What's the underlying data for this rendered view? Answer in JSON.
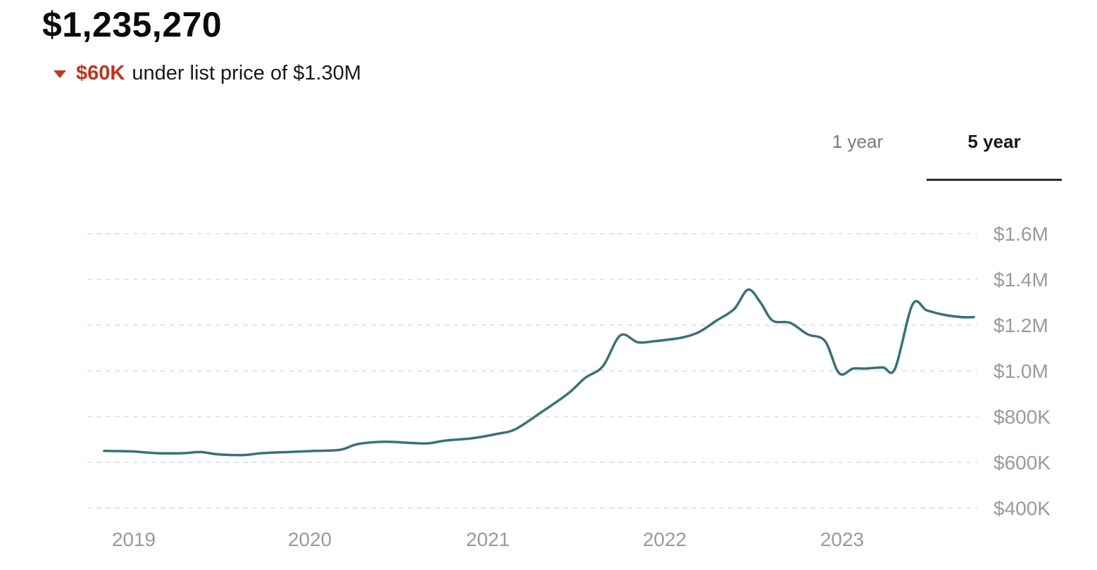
{
  "header": {
    "price": "$1,235,270",
    "delta_amount": "$60K",
    "delta_text": "under list price of $1.30M"
  },
  "tabs": [
    {
      "label": "1 year",
      "active": false
    },
    {
      "label": "5 year",
      "active": true
    }
  ],
  "colors": {
    "line": "#3a7276",
    "negative": "#c0341d",
    "grid": "#dddddd",
    "tick": "#9a9a9a"
  },
  "chart_data": {
    "type": "line",
    "title": "",
    "xlabel": "",
    "ylabel": "",
    "x_ticks": [
      "2019",
      "2020",
      "2021",
      "2022",
      "2023"
    ],
    "y_ticks": [
      "$1.6M",
      "$1.4M",
      "$1.2M",
      "$1.0M",
      "$800K",
      "$600K",
      "$400K"
    ],
    "ylim": [
      400000,
      1600000
    ],
    "xlim": [
      2018.75,
      2023.8
    ],
    "grid": true,
    "y_axis_position": "right",
    "series": [
      {
        "values": [
          [
            2018.8,
            650000
          ],
          [
            2018.95,
            648000
          ],
          [
            2019.1,
            640000
          ],
          [
            2019.25,
            640000
          ],
          [
            2019.35,
            645000
          ],
          [
            2019.45,
            635000
          ],
          [
            2019.6,
            632000
          ],
          [
            2019.7,
            640000
          ],
          [
            2019.85,
            645000
          ],
          [
            2020.0,
            650000
          ],
          [
            2020.15,
            655000
          ],
          [
            2020.25,
            680000
          ],
          [
            2020.4,
            690000
          ],
          [
            2020.55,
            685000
          ],
          [
            2020.65,
            683000
          ],
          [
            2020.75,
            695000
          ],
          [
            2020.9,
            705000
          ],
          [
            2021.05,
            725000
          ],
          [
            2021.15,
            745000
          ],
          [
            2021.3,
            820000
          ],
          [
            2021.45,
            900000
          ],
          [
            2021.55,
            970000
          ],
          [
            2021.65,
            1020000
          ],
          [
            2021.75,
            1155000
          ],
          [
            2021.85,
            1125000
          ],
          [
            2021.95,
            1130000
          ],
          [
            2022.1,
            1145000
          ],
          [
            2022.2,
            1170000
          ],
          [
            2022.3,
            1220000
          ],
          [
            2022.4,
            1270000
          ],
          [
            2022.48,
            1355000
          ],
          [
            2022.55,
            1300000
          ],
          [
            2022.62,
            1220000
          ],
          [
            2022.72,
            1210000
          ],
          [
            2022.82,
            1160000
          ],
          [
            2022.92,
            1130000
          ],
          [
            2023.0,
            990000
          ],
          [
            2023.08,
            1010000
          ],
          [
            2023.15,
            1010000
          ],
          [
            2023.25,
            1015000
          ],
          [
            2023.32,
            1010000
          ],
          [
            2023.42,
            1290000
          ],
          [
            2023.5,
            1265000
          ],
          [
            2023.6,
            1245000
          ],
          [
            2023.7,
            1235000
          ],
          [
            2023.77,
            1235000
          ]
        ]
      }
    ]
  }
}
